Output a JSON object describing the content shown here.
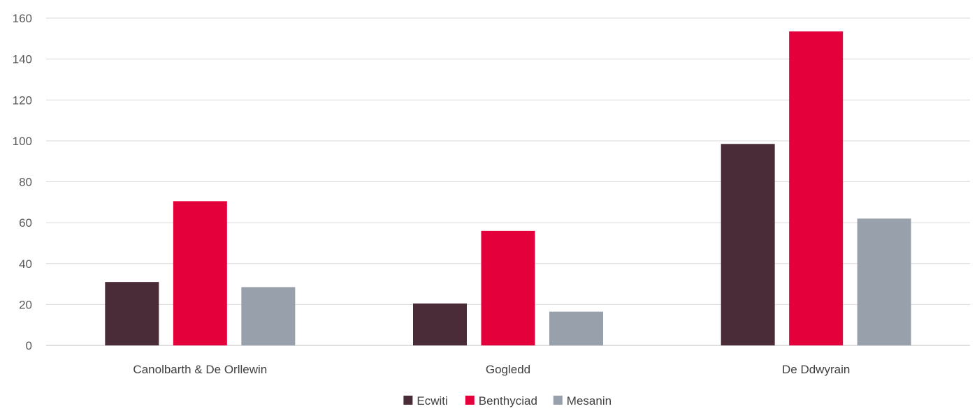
{
  "chart_data": {
    "type": "bar",
    "title": "",
    "xlabel": "",
    "ylabel": "",
    "categories": [
      "Canolbarth & De Orllewin",
      "Gogledd",
      "De Ddwyrain"
    ],
    "series": [
      {
        "name": "Ecwiti",
        "color": "#4a2c38",
        "values": [
          31,
          20.5,
          98.5
        ]
      },
      {
        "name": "Benthyciad",
        "color": "#e4003b",
        "values": [
          70.5,
          56,
          153.5
        ]
      },
      {
        "name": "Mesanin",
        "color": "#98a0ab",
        "values": [
          28.5,
          16.5,
          62
        ]
      }
    ],
    "ylim": [
      0,
      160
    ],
    "yticks": [
      0,
      20,
      40,
      60,
      80,
      100,
      120,
      140,
      160
    ],
    "grid": true,
    "legend_position": "bottom-center"
  }
}
